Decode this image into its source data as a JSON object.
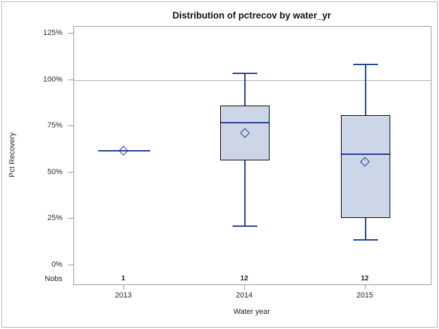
{
  "figure": {
    "title": "Distribution of pctrecov by water_yr"
  },
  "chart_data": {
    "type": "boxplot",
    "title": "Distribution of pctrecov by water_yr",
    "xlabel": "Water year",
    "ylabel": "Pct Recovery",
    "nobs_label": "Nobs",
    "y_unit": "%",
    "ylim": [
      0,
      125
    ],
    "y_ticks": {
      "values": [
        0,
        25,
        50,
        75,
        100,
        125
      ],
      "labels": [
        "0%",
        "25%",
        "50%",
        "75%",
        "100%",
        "125%"
      ]
    },
    "reference_line": {
      "value": 100
    },
    "grid": "reference-line-only",
    "legend": "none",
    "categories": [
      "2013",
      "2014",
      "2015"
    ],
    "nobs": [
      "1",
      "12",
      "12"
    ],
    "series": [
      {
        "category": "2013",
        "nobs": "1",
        "whisker_low": 61.5,
        "q1": 61.5,
        "median": 61.5,
        "q3": 61.5,
        "whisker_high": 61.5,
        "mean": 61.5
      },
      {
        "category": "2014",
        "nobs": "12",
        "whisker_low": 21,
        "q1": 56.5,
        "median": 77,
        "q3": 86,
        "whisker_high": 103.5,
        "mean": 71
      },
      {
        "category": "2015",
        "nobs": "12",
        "whisker_low": 13.5,
        "q1": 25.5,
        "median": 60,
        "q3": 81,
        "whisker_high": 108.5,
        "mean": 55.5
      }
    ],
    "colors": {
      "box_fill": "#ccd6e6",
      "box_border": "#000000",
      "line": "#1a3e94",
      "frame": "#9a9a9a",
      "reference": "#aaaaaa",
      "text": "#1a1a1a"
    }
  }
}
